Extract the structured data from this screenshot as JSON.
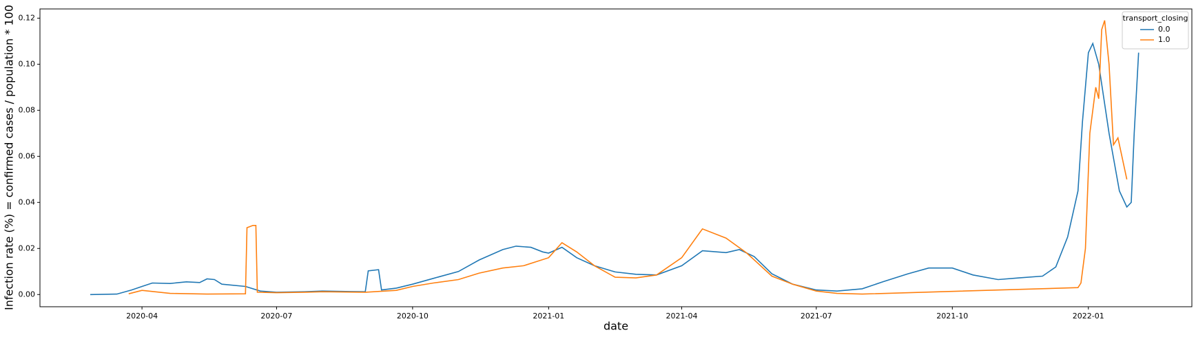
{
  "chart_data": {
    "type": "line",
    "xlabel": "date",
    "ylabel": "Infection rate (%) = confirmed cases / population * 100",
    "xlim": [
      "2020-01-23",
      "2022-03-12"
    ],
    "xticks": [
      "2020-04",
      "2020-07",
      "2020-10",
      "2021-01",
      "2021-04",
      "2021-07",
      "2021-10",
      "2022-01"
    ],
    "ylim": [
      -0.0053,
      0.124
    ],
    "yticks": [
      {
        "value": 0,
        "label": "0.00"
      },
      {
        "value": 0.02,
        "label": "0.02"
      },
      {
        "value": 0.04,
        "label": "0.04"
      },
      {
        "value": 0.06,
        "label": "0.06"
      },
      {
        "value": 0.08,
        "label": "0.08"
      },
      {
        "value": 0.1,
        "label": "0.10"
      },
      {
        "value": 0.12,
        "label": "0.12"
      }
    ],
    "legend_title": "transport_closing",
    "legend_loc": "upper right",
    "series": [
      {
        "name": "0.0",
        "color": "#1f77b4",
        "x": [
          "2020-02-26",
          "2020-03-15",
          "2020-03-25",
          "2020-04-01",
          "2020-04-08",
          "2020-04-20",
          "2020-05-01",
          "2020-05-10",
          "2020-05-15",
          "2020-05-20",
          "2020-05-25",
          "2020-06-10",
          "2020-06-20",
          "2020-07-01",
          "2020-07-20",
          "2020-08-01",
          "2020-08-20",
          "2020-08-30",
          "2020-09-01",
          "2020-09-08",
          "2020-09-10",
          "2020-09-20",
          "2020-10-01",
          "2020-10-15",
          "2020-11-01",
          "2020-11-15",
          "2020-12-01",
          "2020-12-10",
          "2020-12-20",
          "2020-12-28",
          "2021-01-01",
          "2021-01-10",
          "2021-01-20",
          "2021-02-01",
          "2021-02-15",
          "2021-03-01",
          "2021-03-15",
          "2021-04-01",
          "2021-04-15",
          "2021-05-01",
          "2021-05-10",
          "2021-05-20",
          "2021-06-01",
          "2021-06-15",
          "2021-07-01",
          "2021-07-15",
          "2021-08-01",
          "2021-08-15",
          "2021-09-01",
          "2021-09-15",
          "2021-10-01",
          "2021-10-15",
          "2021-11-01",
          "2021-11-15",
          "2021-12-01",
          "2021-12-10",
          "2021-12-18",
          "2021-12-25",
          "2021-12-28",
          "2022-01-01",
          "2022-01-04",
          "2022-01-08",
          "2022-01-15",
          "2022-01-22",
          "2022-01-27",
          "2022-01-30",
          "2022-02-01",
          "2022-02-04"
        ],
        "values": [
          0,
          0.0002,
          0.002,
          0.0035,
          0.005,
          0.0048,
          0.0055,
          0.0052,
          0.0068,
          0.0065,
          0.0045,
          0.0035,
          0.0015,
          0.001,
          0.0012,
          0.0015,
          0.0013,
          0.0012,
          0.0103,
          0.0108,
          0.002,
          0.0028,
          0.0045,
          0.007,
          0.01,
          0.015,
          0.0195,
          0.021,
          0.0205,
          0.0185,
          0.018,
          0.0205,
          0.016,
          0.0125,
          0.0098,
          0.0088,
          0.0085,
          0.0125,
          0.019,
          0.0182,
          0.0195,
          0.0165,
          0.009,
          0.0045,
          0.002,
          0.0015,
          0.0025,
          0.0055,
          0.009,
          0.0115,
          0.0115,
          0.0085,
          0.0065,
          0.0072,
          0.008,
          0.012,
          0.025,
          0.045,
          0.075,
          0.105,
          0.109,
          0.1,
          0.07,
          0.045,
          0.038,
          0.04,
          0.07,
          0.105
        ]
      },
      {
        "name": "1.0",
        "color": "#ff7f0e",
        "x": [
          "2020-03-23",
          "2020-04-01",
          "2020-04-20",
          "2020-05-15",
          "2020-06-10",
          "2020-06-11",
          "2020-06-15",
          "2020-06-17",
          "2020-06-18",
          "2020-07-01",
          "2020-07-20",
          "2020-08-01",
          "2020-08-30",
          "2020-09-20",
          "2020-10-01",
          "2020-10-15",
          "2020-11-01",
          "2020-11-15",
          "2020-12-01",
          "2020-12-15",
          "2021-01-01",
          "2021-01-10",
          "2021-01-20",
          "2021-02-01",
          "2021-02-15",
          "2021-03-01",
          "2021-03-15",
          "2021-04-01",
          "2021-04-15",
          "2021-05-01",
          "2021-05-15",
          "2021-06-01",
          "2021-06-15",
          "2021-07-01",
          "2021-07-15",
          "2021-08-01",
          "2021-12-25",
          "2021-12-27",
          "2021-12-30",
          "2022-01-02",
          "2022-01-06",
          "2022-01-08",
          "2022-01-10",
          "2022-01-12",
          "2022-01-15",
          "2022-01-18",
          "2022-01-21",
          "2022-01-23",
          "2022-01-27"
        ],
        "values": [
          0.0003,
          0.0018,
          0.0005,
          0.0002,
          0.0003,
          0.029,
          0.03,
          0.03,
          0.001,
          0.0008,
          0.001,
          0.0012,
          0.001,
          0.0018,
          0.0035,
          0.005,
          0.0065,
          0.0093,
          0.0115,
          0.0125,
          0.016,
          0.0225,
          0.0185,
          0.0125,
          0.0075,
          0.0072,
          0.0085,
          0.016,
          0.0285,
          0.0245,
          0.018,
          0.008,
          0.0045,
          0.0015,
          0.0005,
          0.0002,
          0.003,
          0.005,
          0.02,
          0.07,
          0.09,
          0.085,
          0.115,
          0.119,
          0.1,
          0.065,
          0.068,
          0.062,
          0.05
        ]
      }
    ]
  }
}
